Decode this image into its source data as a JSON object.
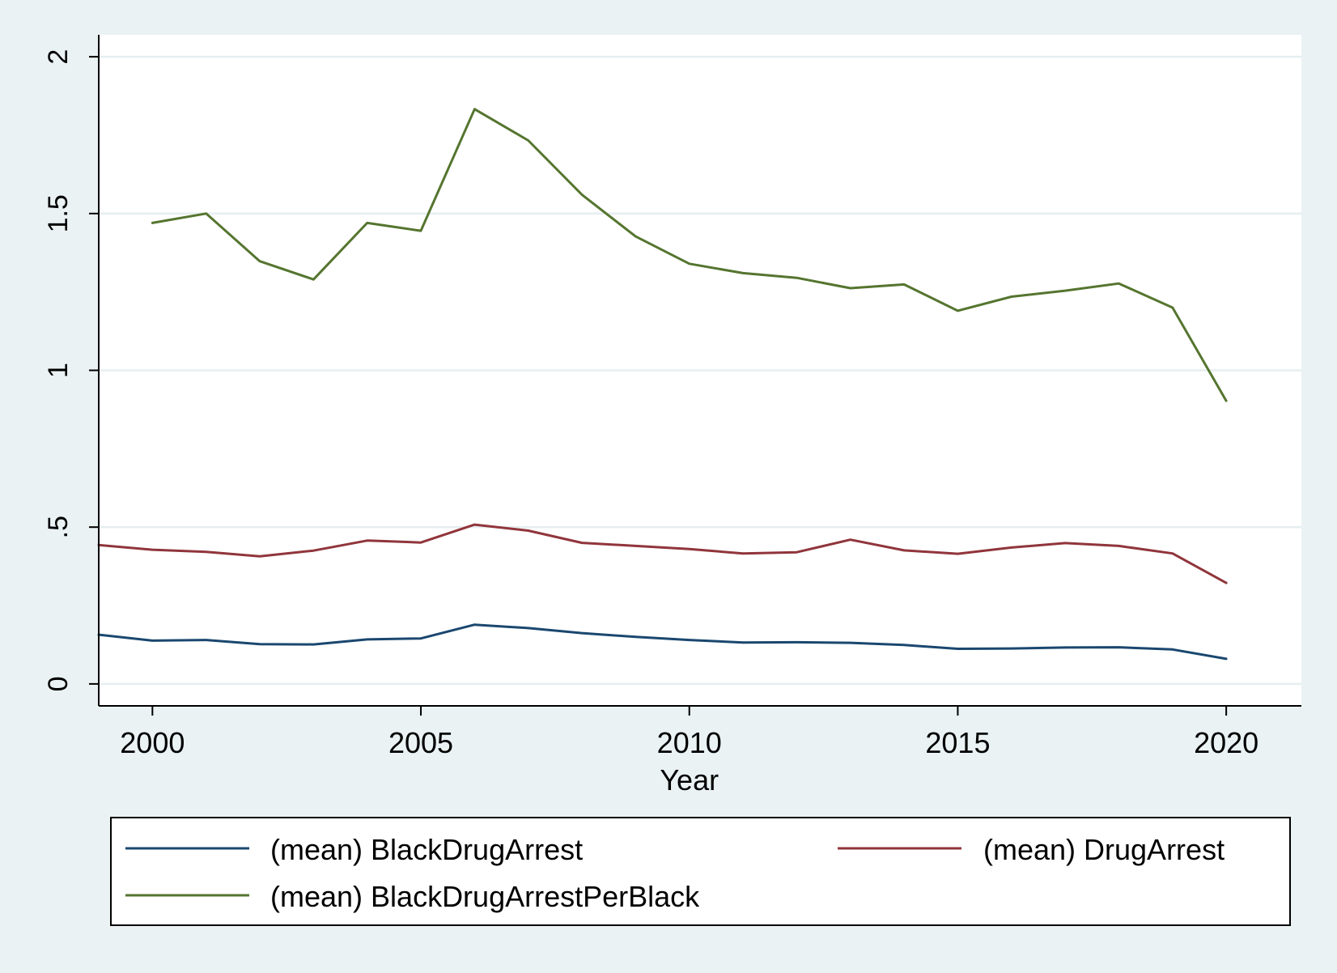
{
  "chart_data": {
    "type": "line",
    "xlabel": "Year",
    "ylabel": "",
    "xlim": [
      1999,
      2021.4
    ],
    "ylim": [
      -0.07,
      2.07
    ],
    "xticks": [
      2000,
      2005,
      2010,
      2015,
      2020
    ],
    "xtick_labels": [
      "2000",
      "2005",
      "2010",
      "2015",
      "2020"
    ],
    "yticks": [
      0,
      0.5,
      1,
      1.5,
      2
    ],
    "ytick_labels": [
      "0",
      ".5",
      "1",
      "1.5",
      "2"
    ],
    "grid": true,
    "legend_position": "bottom",
    "colors": {
      "page_background": "#eaf2f3",
      "plot_background": "#ffffff",
      "grid": "#e6eef0"
    },
    "series": [
      {
        "name": "(mean) BlackDrugArrest",
        "color": "#1a476f",
        "x": [
          1999,
          2000,
          2001,
          2002,
          2003,
          2004,
          2005,
          2006,
          2007,
          2008,
          2009,
          2010,
          2011,
          2012,
          2013,
          2014,
          2015,
          2016,
          2017,
          2018,
          2019,
          2020
        ],
        "y": [
          0.157,
          0.138,
          0.14,
          0.127,
          0.126,
          0.142,
          0.145,
          0.189,
          0.178,
          0.162,
          0.15,
          0.14,
          0.132,
          0.133,
          0.131,
          0.124,
          0.112,
          0.113,
          0.116,
          0.117,
          0.11,
          0.08
        ]
      },
      {
        "name": "(mean) DrugArrest",
        "color": "#90353b",
        "x": [
          1999,
          2000,
          2001,
          2002,
          2003,
          2004,
          2005,
          2006,
          2007,
          2008,
          2009,
          2010,
          2011,
          2012,
          2013,
          2014,
          2015,
          2016,
          2017,
          2018,
          2019,
          2020
        ],
        "y": [
          0.443,
          0.428,
          0.421,
          0.407,
          0.425,
          0.457,
          0.451,
          0.508,
          0.489,
          0.45,
          0.44,
          0.43,
          0.416,
          0.42,
          0.46,
          0.426,
          0.415,
          0.435,
          0.449,
          0.44,
          0.416,
          0.322
        ]
      },
      {
        "name": "(mean) BlackDrugArrestPerBlack",
        "color": "#55752f",
        "x": [
          2000,
          2001,
          2002,
          2003,
          2004,
          2005,
          2006,
          2007,
          2008,
          2009,
          2010,
          2011,
          2012,
          2013,
          2014,
          2015,
          2016,
          2017,
          2018,
          2019,
          2020
        ],
        "y": [
          1.47,
          1.5,
          1.348,
          1.29,
          1.47,
          1.445,
          1.833,
          1.733,
          1.56,
          1.427,
          1.34,
          1.31,
          1.295,
          1.262,
          1.274,
          1.19,
          1.235,
          1.254,
          1.277,
          1.2,
          0.903
        ]
      }
    ]
  }
}
